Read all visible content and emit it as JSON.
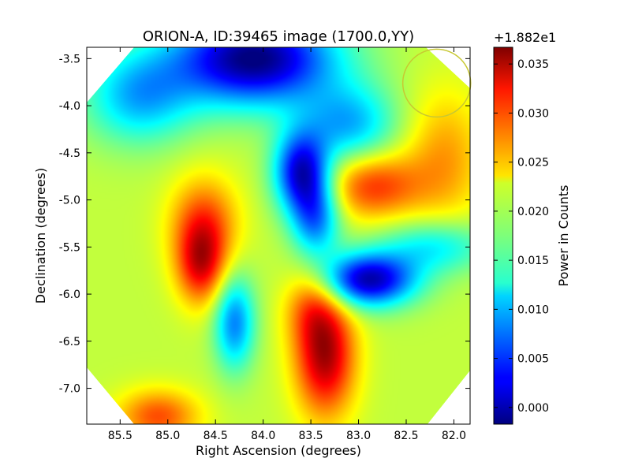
{
  "chart_data": {
    "type": "heatmap",
    "title": "ORION-A, ID:39465 image (1700.0,YY)",
    "xlabel": "Right Ascension (degrees)",
    "ylabel": "Declination (degrees)",
    "xlim": [
      85.85,
      81.83
    ],
    "ylim": [
      -7.38,
      -3.38
    ],
    "x_ticks": [
      "85.5",
      "85.0",
      "84.5",
      "84.0",
      "83.5",
      "83.0",
      "82.5",
      "82.0"
    ],
    "x_tick_values": [
      85.5,
      85.0,
      84.5,
      84.0,
      83.5,
      83.0,
      82.5,
      82.0
    ],
    "y_ticks": [
      "-3.5",
      "-4.0",
      "-4.5",
      "-5.0",
      "-5.5",
      "-6.0",
      "-6.5",
      "-7.0"
    ],
    "y_tick_values": [
      -3.5,
      -4.0,
      -4.5,
      -5.0,
      -5.5,
      -6.0,
      -6.5,
      -7.0
    ],
    "colormap": "jet",
    "colorbar": {
      "label": "Power in Counts",
      "offset_label": "+1.882e1",
      "range": [
        -0.0017,
        0.0367
      ],
      "ticks": [
        "0.000",
        "0.005",
        "0.010",
        "0.015",
        "0.020",
        "0.025",
        "0.030",
        "0.035"
      ],
      "tick_values": [
        0.0,
        0.005,
        0.01,
        0.015,
        0.02,
        0.025,
        0.03,
        0.035
      ]
    },
    "background_level": 0.02,
    "features": [
      {
        "kind": "peak",
        "ra": 84.65,
        "dec": -5.7,
        "amp": 0.011,
        "sx": 0.18,
        "sy": 0.3
      },
      {
        "kind": "peak",
        "ra": 84.62,
        "dec": -5.25,
        "amp": 0.009,
        "sx": 0.25,
        "sy": 0.35
      },
      {
        "kind": "peak",
        "ra": 83.35,
        "dec": -6.65,
        "amp": 0.015,
        "sx": 0.22,
        "sy": 0.45
      },
      {
        "kind": "peak",
        "ra": 83.5,
        "dec": -6.1,
        "amp": 0.006,
        "sx": 0.2,
        "sy": 0.3
      },
      {
        "kind": "peak",
        "ra": 82.85,
        "dec": -4.85,
        "amp": 0.01,
        "sx": 0.35,
        "sy": 0.25
      },
      {
        "kind": "peak",
        "ra": 82.1,
        "dec": -4.55,
        "amp": 0.006,
        "sx": 0.3,
        "sy": 0.5
      },
      {
        "kind": "peak",
        "ra": 85.1,
        "dec": -7.3,
        "amp": 0.009,
        "sx": 0.3,
        "sy": 0.2
      },
      {
        "kind": "dip",
        "ra": 84.1,
        "dec": -3.5,
        "amp": 0.022,
        "sx": 0.6,
        "sy": 0.35
      },
      {
        "kind": "dip",
        "ra": 83.6,
        "dec": -4.7,
        "amp": 0.018,
        "sx": 0.2,
        "sy": 0.3
      },
      {
        "kind": "dip",
        "ra": 83.45,
        "dec": -5.2,
        "amp": 0.012,
        "sx": 0.18,
        "sy": 0.3
      },
      {
        "kind": "dip",
        "ra": 82.9,
        "dec": -5.85,
        "amp": 0.02,
        "sx": 0.35,
        "sy": 0.2
      },
      {
        "kind": "dip",
        "ra": 82.2,
        "dec": -5.5,
        "amp": 0.008,
        "sx": 0.4,
        "sy": 0.2
      },
      {
        "kind": "dip",
        "ra": 84.3,
        "dec": -6.3,
        "amp": 0.012,
        "sx": 0.15,
        "sy": 0.35
      },
      {
        "kind": "dip",
        "ra": 85.3,
        "dec": -3.9,
        "amp": 0.01,
        "sx": 0.4,
        "sy": 0.35
      },
      {
        "kind": "dip",
        "ra": 83.1,
        "dec": -4.2,
        "amp": 0.01,
        "sx": 0.35,
        "sy": 0.3
      }
    ],
    "beam_marker": {
      "ra": 82.18,
      "dec": -3.76,
      "radius_deg": 0.3,
      "color": "#c8c832"
    }
  }
}
